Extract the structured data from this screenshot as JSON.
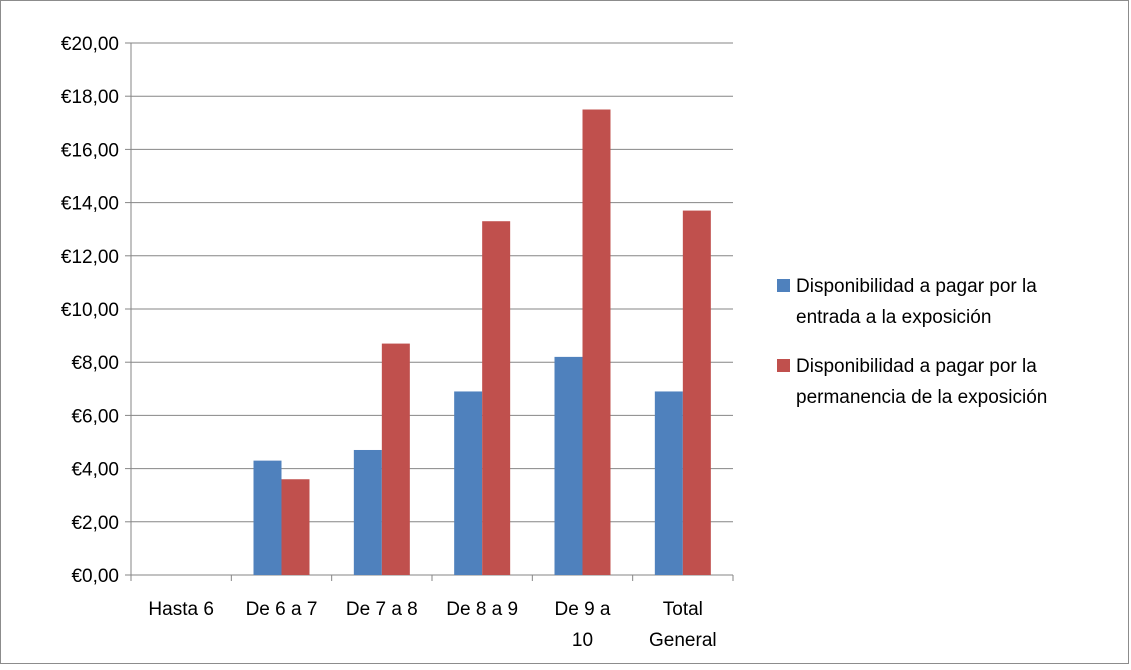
{
  "chart_data": {
    "type": "bar",
    "categories": [
      [
        "Hasta 6"
      ],
      [
        "De 6 a 7"
      ],
      [
        "De 7 a 8"
      ],
      [
        "De 8 a 9"
      ],
      [
        "De 9 a",
        "10"
      ],
      [
        "Total",
        "General"
      ]
    ],
    "series": [
      {
        "name": "Disponibilidad a pagar por la entrada a la exposición",
        "legend_lines": [
          "Disponibilidad a pagar por la",
          "entrada a la exposición"
        ],
        "color": "#4F81BD",
        "values": [
          0,
          4.3,
          4.7,
          6.9,
          8.2,
          6.9
        ]
      },
      {
        "name": "Disponibilidad a pagar por la permanencia de la exposición",
        "legend_lines": [
          "Disponibilidad a pagar por la",
          "permanencia de la exposición"
        ],
        "color": "#C0504D",
        "values": [
          0,
          3.6,
          8.7,
          13.3,
          17.5,
          13.7
        ]
      }
    ],
    "y_ticks": [
      "€0,00",
      "€2,00",
      "€4,00",
      "€6,00",
      "€8,00",
      "€10,00",
      "€12,00",
      "€14,00",
      "€16,00",
      "€18,00",
      "€20,00"
    ],
    "ylim": [
      0,
      20
    ],
    "ystep": 2,
    "grid": true,
    "legend_position": "right"
  }
}
